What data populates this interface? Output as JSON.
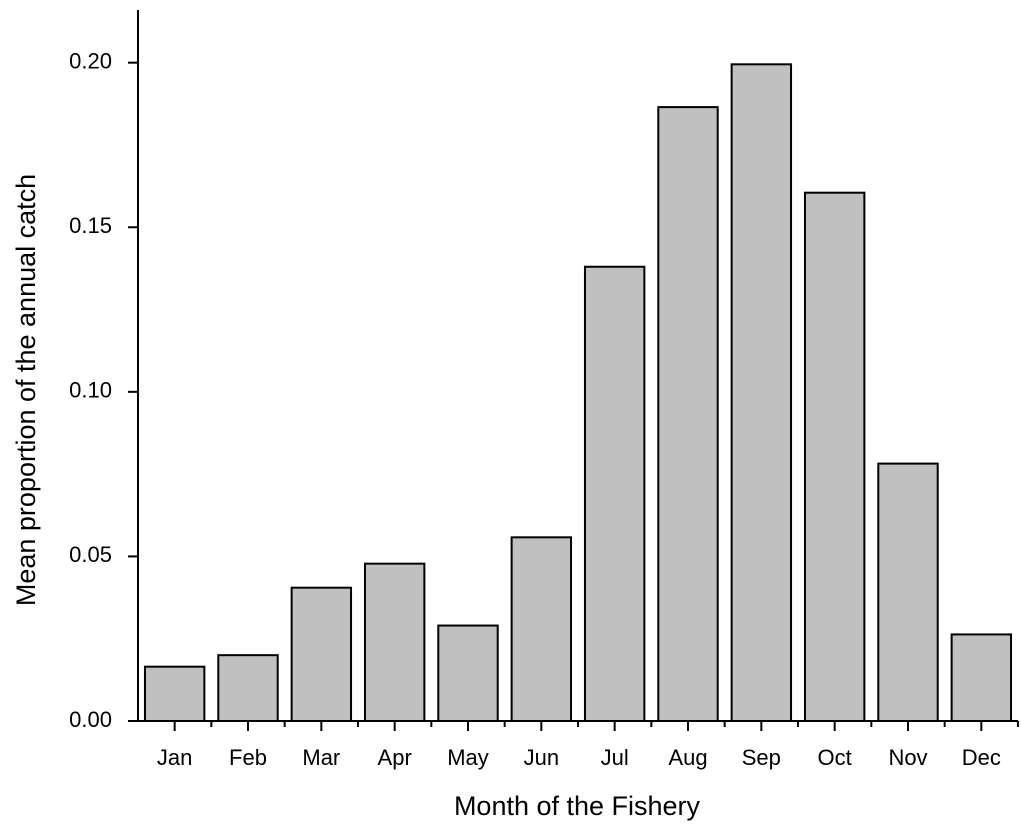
{
  "chart_data": {
    "type": "bar",
    "x_label": "Month of the Fishery",
    "y_label": "Mean proportion of the annual catch",
    "categories": [
      "Jan",
      "Feb",
      "Mar",
      "Apr",
      "May",
      "Jun",
      "Jul",
      "Aug",
      "Sep",
      "Oct",
      "Nov",
      "Dec"
    ],
    "values": [
      0.0165,
      0.02,
      0.0405,
      0.0478,
      0.029,
      0.0558,
      0.138,
      0.1865,
      0.1995,
      0.1605,
      0.0782,
      0.0263
    ],
    "color": "#c0c0c0",
    "ylim": [
      0,
      0.216
    ],
    "yticks": [
      {
        "value": 0,
        "label": "0.00"
      },
      {
        "value": 0.05,
        "label": "0.05"
      },
      {
        "value": 0.1,
        "label": "0.10"
      },
      {
        "value": 0.15,
        "label": "0.15"
      },
      {
        "value": 0.2,
        "label": "0.20"
      }
    ],
    "grid": false
  }
}
